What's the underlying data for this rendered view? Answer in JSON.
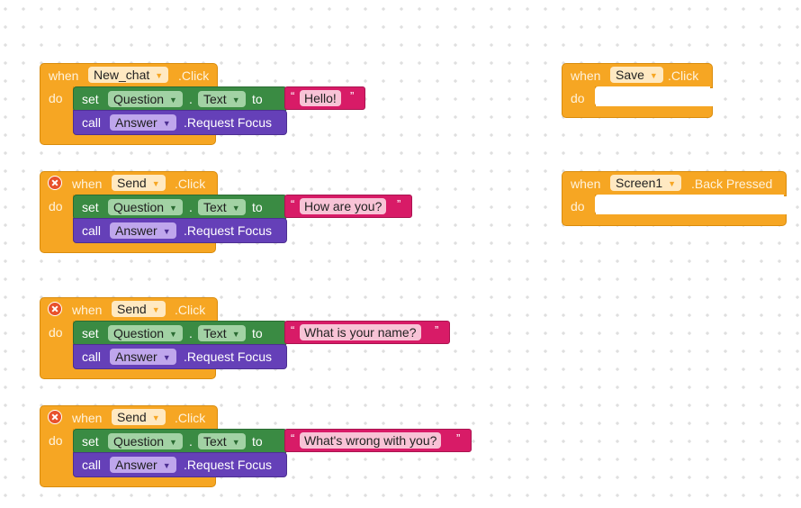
{
  "colors": {
    "event": "#f6a623",
    "setter": "#3a8b43",
    "method_call": "#6540b8",
    "text_string": "#d81b67",
    "error_badge": "#e8512b",
    "grid_dot": "#d4d4d4"
  },
  "keywords": {
    "when": "when",
    "do": "do",
    "set": "set",
    "call": "call",
    "to": "to",
    "dot": ".",
    "open_quote": "“",
    "close_quote": "”"
  },
  "blocks": [
    {
      "component": "New_chat",
      "event": ".Click",
      "has_error": false,
      "set_component": "Question",
      "set_property": "Text",
      "text_value": "Hello!",
      "call_component": "Answer",
      "call_method": ".Request Focus"
    },
    {
      "component": "Send",
      "event": ".Click",
      "has_error": true,
      "set_component": "Question",
      "set_property": "Text",
      "text_value": "How are you?",
      "call_component": "Answer",
      "call_method": ".Request Focus"
    },
    {
      "component": "Send",
      "event": ".Click",
      "has_error": true,
      "set_component": "Question",
      "set_property": "Text",
      "text_value": "What is your name?",
      "call_component": "Answer",
      "call_method": ".Request Focus"
    },
    {
      "component": "Send",
      "event": ".Click",
      "has_error": true,
      "set_component": "Question",
      "set_property": "Text",
      "text_value": "What's wrong with you?",
      "call_component": "Answer",
      "call_method": ".Request Focus"
    }
  ],
  "empty_blocks": [
    {
      "component": "Save",
      "event": ".Click"
    },
    {
      "component": "Screen1",
      "event": ".Back Pressed"
    }
  ]
}
